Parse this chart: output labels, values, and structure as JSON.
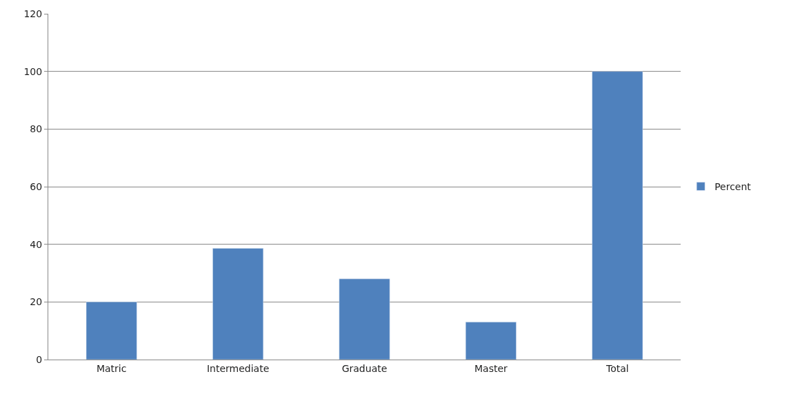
{
  "chart_data": {
    "type": "bar",
    "categories": [
      "Matric",
      "Intermediate",
      "Graduate",
      "Master",
      "Total"
    ],
    "series": [
      {
        "name": "Percent",
        "color": "#4f81bd",
        "values": [
          20,
          38.6,
          28,
          13,
          100
        ]
      }
    ],
    "ylim": [
      0,
      120
    ],
    "yticks": [
      0,
      20,
      40,
      60,
      80,
      100,
      120
    ],
    "grid": "y",
    "legend": "right"
  }
}
